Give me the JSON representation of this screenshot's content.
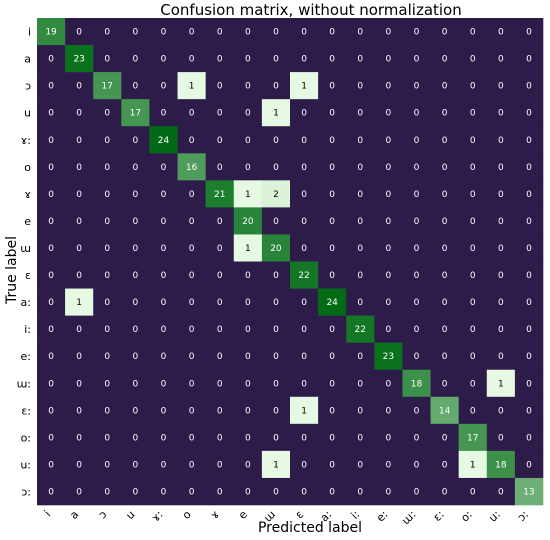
{
  "chart_data": {
    "type": "heatmap",
    "title": "Confusion matrix, without normalization",
    "xlabel": "Predicted label",
    "ylabel": "True label",
    "labels": [
      "i",
      "a",
      "ɔ",
      "u",
      "ɤ:",
      "o",
      "ɤ",
      "e",
      "ɯ",
      "ɛ",
      "a:",
      "i:",
      "e:",
      "ɯ:",
      "ɛ:",
      "o:",
      "u:",
      "ɔ:"
    ],
    "matrix": [
      [
        19,
        0,
        0,
        0,
        0,
        0,
        0,
        0,
        0,
        0,
        0,
        0,
        0,
        0,
        0,
        0,
        0,
        0
      ],
      [
        0,
        23,
        0,
        0,
        0,
        0,
        0,
        0,
        0,
        0,
        0,
        0,
        0,
        0,
        0,
        0,
        0,
        0
      ],
      [
        0,
        0,
        17,
        0,
        0,
        1,
        0,
        0,
        0,
        1,
        0,
        0,
        0,
        0,
        0,
        0,
        0,
        0
      ],
      [
        0,
        0,
        0,
        17,
        0,
        0,
        0,
        0,
        1,
        0,
        0,
        0,
        0,
        0,
        0,
        0,
        0,
        0
      ],
      [
        0,
        0,
        0,
        0,
        24,
        0,
        0,
        0,
        0,
        0,
        0,
        0,
        0,
        0,
        0,
        0,
        0,
        0
      ],
      [
        0,
        0,
        0,
        0,
        0,
        16,
        0,
        0,
        0,
        0,
        0,
        0,
        0,
        0,
        0,
        0,
        0,
        0
      ],
      [
        0,
        0,
        0,
        0,
        0,
        0,
        21,
        1,
        2,
        0,
        0,
        0,
        0,
        0,
        0,
        0,
        0,
        0
      ],
      [
        0,
        0,
        0,
        0,
        0,
        0,
        0,
        20,
        0,
        0,
        0,
        0,
        0,
        0,
        0,
        0,
        0,
        0
      ],
      [
        0,
        0,
        0,
        0,
        0,
        0,
        0,
        1,
        20,
        0,
        0,
        0,
        0,
        0,
        0,
        0,
        0,
        0
      ],
      [
        0,
        0,
        0,
        0,
        0,
        0,
        0,
        0,
        0,
        22,
        0,
        0,
        0,
        0,
        0,
        0,
        0,
        0
      ],
      [
        0,
        1,
        0,
        0,
        0,
        0,
        0,
        0,
        0,
        0,
        24,
        0,
        0,
        0,
        0,
        0,
        0,
        0
      ],
      [
        0,
        0,
        0,
        0,
        0,
        0,
        0,
        0,
        0,
        0,
        0,
        22,
        0,
        0,
        0,
        0,
        0,
        0
      ],
      [
        0,
        0,
        0,
        0,
        0,
        0,
        0,
        0,
        0,
        0,
        0,
        0,
        23,
        0,
        0,
        0,
        0,
        0
      ],
      [
        0,
        0,
        0,
        0,
        0,
        0,
        0,
        0,
        0,
        0,
        0,
        0,
        0,
        18,
        0,
        0,
        1,
        0
      ],
      [
        0,
        0,
        0,
        0,
        0,
        0,
        0,
        0,
        0,
        1,
        0,
        0,
        0,
        0,
        14,
        0,
        0,
        0
      ],
      [
        0,
        0,
        0,
        0,
        0,
        0,
        0,
        0,
        0,
        0,
        0,
        0,
        0,
        0,
        0,
        17,
        0,
        0
      ],
      [
        0,
        0,
        0,
        0,
        0,
        0,
        0,
        0,
        1,
        0,
        0,
        0,
        0,
        0,
        0,
        1,
        18,
        0
      ],
      [
        0,
        0,
        0,
        0,
        0,
        0,
        0,
        0,
        0,
        0,
        0,
        0,
        0,
        0,
        0,
        0,
        0,
        13
      ]
    ],
    "colors": {
      "zero": "#2d1b4a",
      "low": "#e6f9e2",
      "high": "#006b14"
    }
  }
}
